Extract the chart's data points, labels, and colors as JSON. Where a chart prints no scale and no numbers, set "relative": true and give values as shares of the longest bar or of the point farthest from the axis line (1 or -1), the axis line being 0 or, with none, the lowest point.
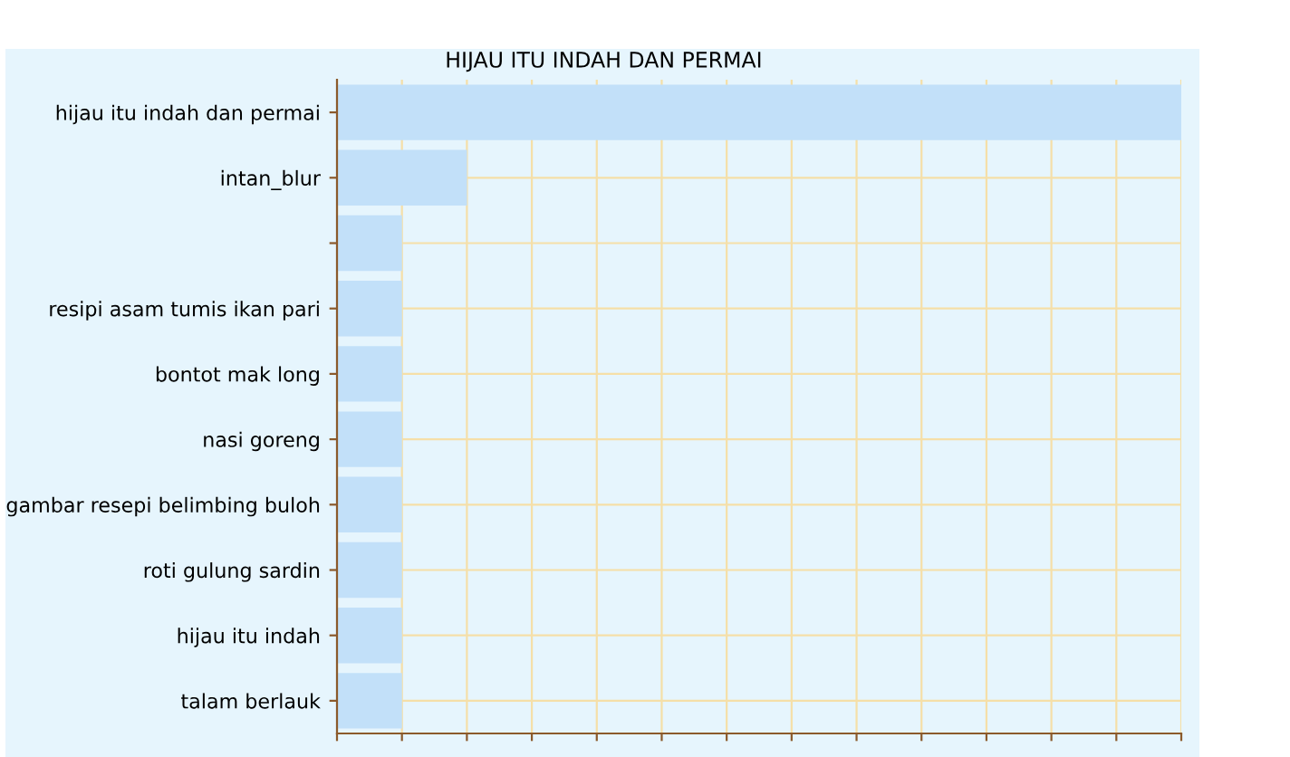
{
  "chart_data": {
    "type": "bar",
    "orientation": "horizontal",
    "relative": true,
    "title": "HIJAU ITU INDAH DAN PERMAI",
    "categories": [
      "hijau itu indah dan permai",
      "intan_blur",
      null,
      "resipi asam tumis ikan pari",
      "bontot mak long",
      "nasi goreng",
      "gambar resepi belimbing buloh",
      "roti gulung sardin",
      "hijau itu indah",
      "talam berlauk"
    ],
    "values": [
      1,
      0.154,
      0.077,
      0.077,
      0.077,
      0.077,
      0.077,
      0.077,
      0.077,
      0.077
    ],
    "color": "#c2e0f9",
    "grid": true,
    "legend": false
  }
}
